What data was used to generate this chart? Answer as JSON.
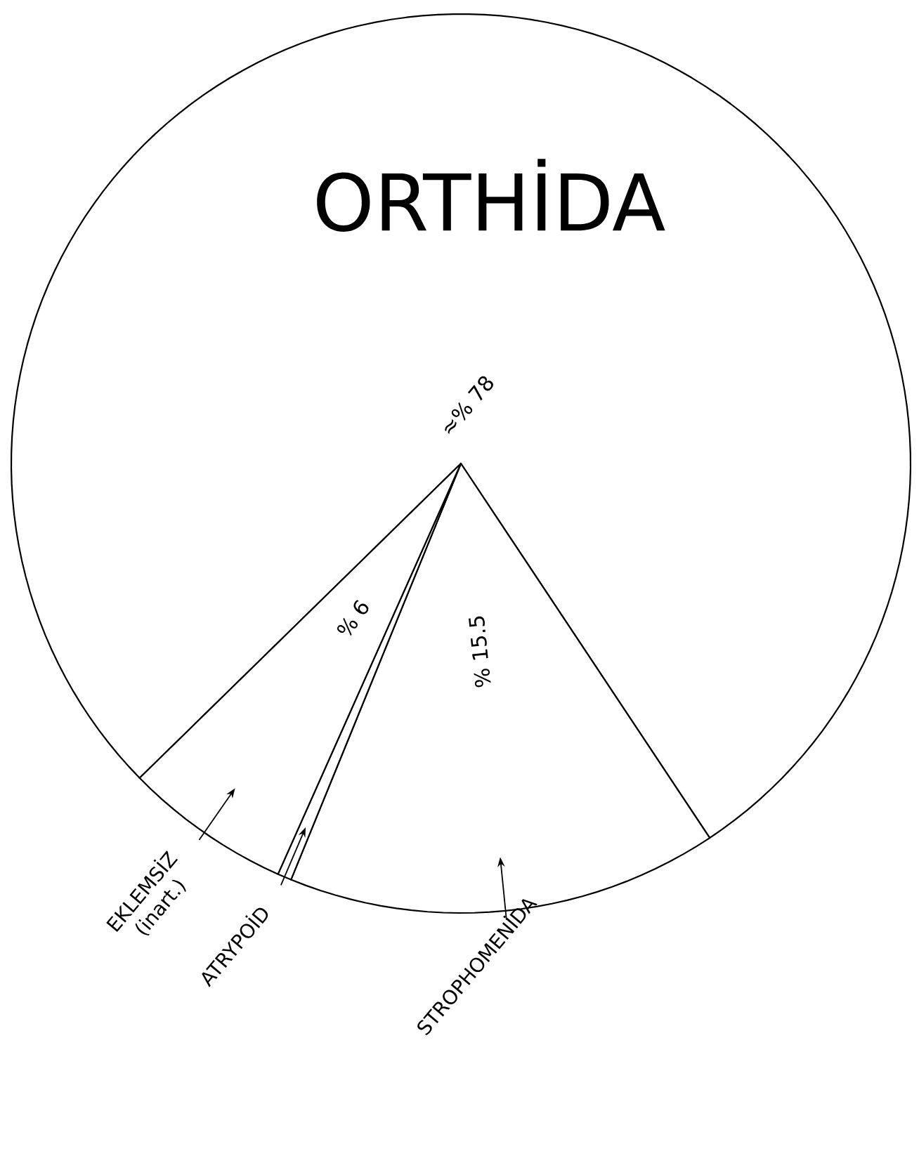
{
  "chart_data": {
    "type": "pie",
    "categories": [
      "ORTHİDA",
      "STROPHOMENİDA",
      "ATRYPOİD",
      "EKLEMSİZ (inart.)"
    ],
    "values": [
      78,
      15.5,
      0.5,
      6
    ],
    "colors": [
      "#ffffff",
      "#ffffff",
      "#ffffff",
      "#ffffff"
    ],
    "value_labels": [
      "≈% 78",
      "% 15.5",
      null,
      "% 6"
    ]
  }
}
